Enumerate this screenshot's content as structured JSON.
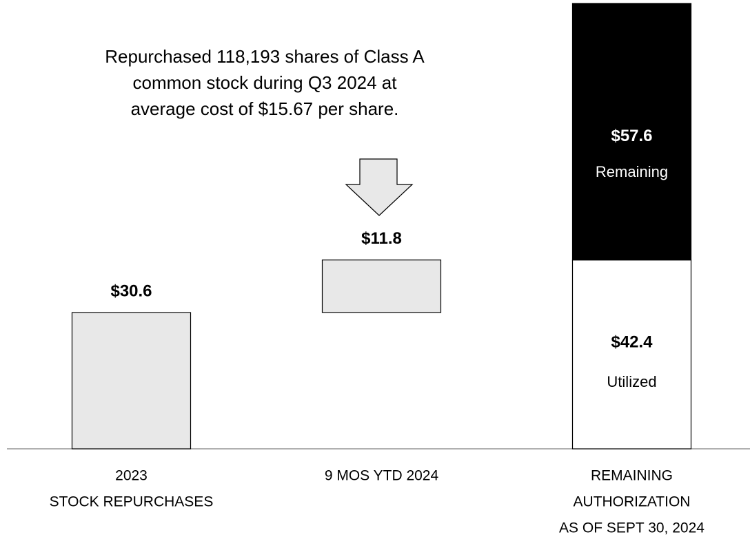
{
  "chart_data": {
    "type": "waterfall",
    "annotation": [
      "Repurchased 118,193 shares of Class A",
      "common stock during Q3 2024 at",
      "average cost of $15.67 per share."
    ],
    "categories": [
      [
        "2023",
        "STOCK REPURCHASES"
      ],
      [
        "9 MOS YTD 2024"
      ],
      [
        "REMAINING",
        "AUTHORIZATION",
        "AS OF SEPT 30, 2024"
      ]
    ],
    "values": [
      30.6,
      11.8,
      null
    ],
    "value_labels": [
      "$30.6",
      "$11.8",
      null
    ],
    "color": "#e8e8e8",
    "series": [
      {
        "name": "Utilized",
        "color": "#ffffff",
        "values": [
          null,
          null,
          42.4
        ],
        "value_labels": [
          null,
          null,
          "$42.4"
        ]
      },
      {
        "name": "Remaining",
        "color": "#000000",
        "values": [
          null,
          null,
          57.6
        ],
        "value_labels": [
          null,
          null,
          "$57.6"
        ]
      }
    ],
    "ylim": [
      0,
      100
    ]
  }
}
